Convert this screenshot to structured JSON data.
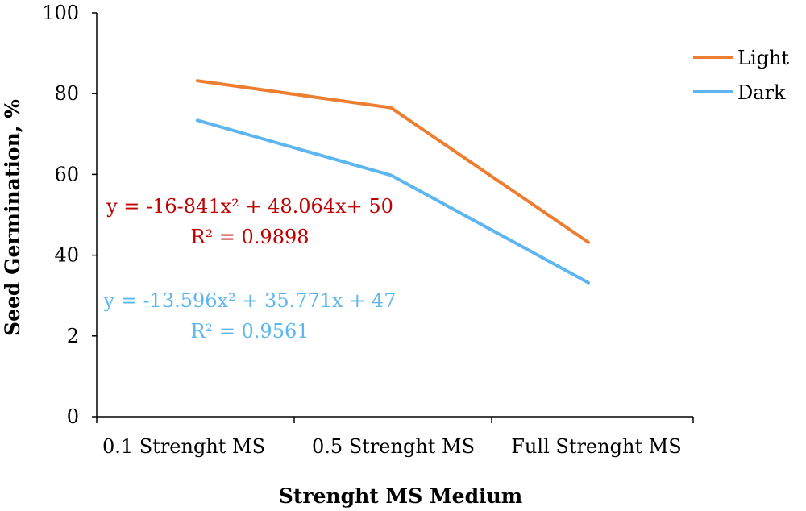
{
  "chart_data": {
    "type": "line",
    "title": "",
    "xlabel": "Strenght MS Medium",
    "ylabel": "Seed Germination, %",
    "categories": [
      "0.1 Strenght MS",
      "0.5 Strenght MS",
      "Full Strenght MS"
    ],
    "yticks": [
      "0",
      "2",
      "40",
      "60",
      "80",
      "100"
    ],
    "ylim": [
      0,
      100
    ],
    "grid": false,
    "legend_position": "top-right",
    "series": [
      {
        "name": "Light",
        "color": "#ED7D31",
        "values": [
          83.2,
          76.5,
          43.2
        ]
      },
      {
        "name": "Dark",
        "color": "#5DB6EF",
        "values": [
          73.4,
          59.8,
          33.2
        ]
      }
    ],
    "annotations": [
      {
        "equation": "y = -16-841x² + 48.064x+ 50",
        "r2": "R² = 0.9898",
        "color": "#C00000"
      },
      {
        "equation": "y = -13.596x² + 35.771x + 47",
        "r2": "R² = 0.9561",
        "color": "#5DB6EF"
      }
    ]
  }
}
